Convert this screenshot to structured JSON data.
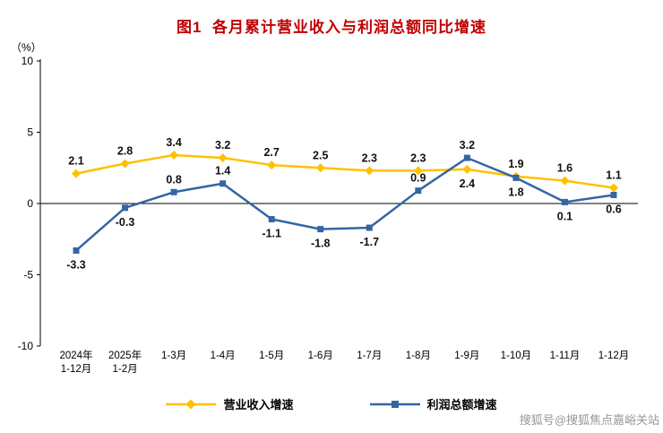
{
  "chart_data": {
    "type": "line",
    "title": "图1  各月累计营业收入与利润总额同比增速",
    "ylabel": "（%）",
    "xlabel": "",
    "ylim": [
      -10,
      10
    ],
    "yticks": [
      10,
      5,
      0,
      -5,
      -10
    ],
    "grid": false,
    "zero_line": true,
    "legend_position": "bottom",
    "categories": [
      "2024年\n1-12月",
      "2025年\n1-2月",
      "1-3月",
      "1-4月",
      "1-5月",
      "1-6月",
      "1-7月",
      "1-8月",
      "1-9月",
      "1-10月",
      "1-11月",
      "1-12月"
    ],
    "series": [
      {
        "name": "营业收入增速",
        "color": "#FFC000",
        "marker": "diamond",
        "values": [
          2.1,
          2.8,
          3.4,
          3.2,
          2.7,
          2.5,
          2.3,
          2.3,
          2.4,
          1.9,
          1.6,
          1.1
        ],
        "label_pos": [
          "above",
          "above",
          "above",
          "above",
          "above",
          "above",
          "above",
          "above",
          "below",
          "above",
          "above",
          "above"
        ]
      },
      {
        "name": "利润总额增速",
        "color": "#3465A4",
        "marker": "square",
        "values": [
          -3.3,
          -0.3,
          0.8,
          1.4,
          -1.1,
          -1.8,
          -1.7,
          0.9,
          3.2,
          1.8,
          0.1,
          0.6
        ],
        "label_pos": [
          "below",
          "below",
          "above",
          "above",
          "below",
          "below",
          "below",
          "above",
          "above",
          "below",
          "below",
          "below"
        ]
      }
    ]
  },
  "colors": {
    "title": "#C00000",
    "axis": "#000000",
    "data_label": "#111111",
    "watermark": "#979797"
  },
  "watermark": {
    "text": "搜狐号@搜狐焦点嘉峪关站"
  }
}
